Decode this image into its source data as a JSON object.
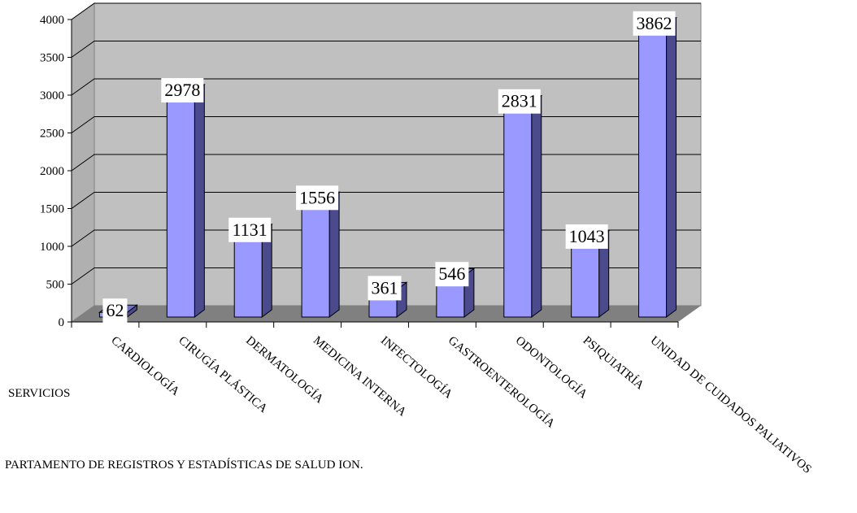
{
  "chart_data": {
    "type": "bar",
    "xlabel": "SERVICIOS",
    "source": "PARTAMENTO DE REGISTROS Y ESTADÍSTICAS DE SALUD ION.",
    "categories": [
      "CARDIOLOGÍA",
      "CIRUGÍA PLÁSTICA",
      "DERMATOLOGÍA",
      "MEDICINA INTERNA",
      "INFECTOLOGÍA",
      "GASTROENTEROLOGÍA",
      "ODONTOLOGÍA",
      "PSIQUIATRÍA",
      "UNIDAD DE CUIDADOS PALIATIVOS"
    ],
    "values": [
      62,
      2978,
      1131,
      1556,
      361,
      546,
      2831,
      1043,
      3862
    ],
    "value_labels": [
      "62",
      "2978",
      "1131",
      "1556",
      "361",
      "546",
      "2831",
      "1043",
      "3862"
    ],
    "ylim": [
      0,
      4000
    ],
    "yticks": [
      0,
      500,
      1000,
      1500,
      2000,
      2500,
      3000,
      3500,
      4000
    ],
    "ytick_labels": [
      "0",
      "500",
      "1000",
      "1500",
      "2000",
      "2500",
      "3000",
      "3500",
      "4000"
    ],
    "grid": true,
    "legend": false,
    "style": "3d-column",
    "colors": {
      "bar_front": "#9999ff",
      "bar_side": "#4a4a8c",
      "bar_top": "#7070c0",
      "wall": "#c0c0c0",
      "side_wall": "#b0b0b0",
      "floor": "#808080",
      "grid": "#000000"
    }
  }
}
